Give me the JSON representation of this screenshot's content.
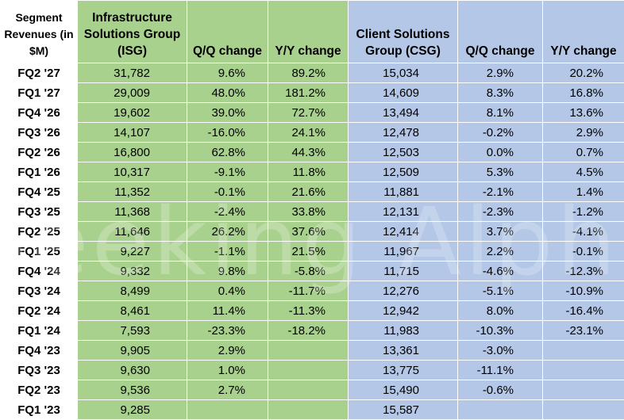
{
  "headers": {
    "segment": "Segment Revenues (in $M)",
    "isg": "Infrastructure Solutions Group (ISG)",
    "isg_qq": "Q/Q change",
    "isg_yy": "Y/Y change",
    "csg": "Client Solutions Group (CSG)",
    "csg_qq": "Q/Q change",
    "csg_yy": "Y/Y change"
  },
  "rows": [
    {
      "quarter": "FQ2 '27",
      "isg": "31,782",
      "isg_qq": "9.6%",
      "isg_yy": "89.2%",
      "csg": "15,034",
      "csg_qq": "2.9%",
      "csg_yy": "20.2%"
    },
    {
      "quarter": "FQ1 '27",
      "isg": "29,009",
      "isg_qq": "48.0%",
      "isg_yy": "181.2%",
      "csg": "14,609",
      "csg_qq": "8.3%",
      "csg_yy": "16.8%"
    },
    {
      "quarter": "FQ4 '26",
      "isg": "19,602",
      "isg_qq": "39.0%",
      "isg_yy": "72.7%",
      "csg": "13,494",
      "csg_qq": "8.1%",
      "csg_yy": "13.6%"
    },
    {
      "quarter": "FQ3 '26",
      "isg": "14,107",
      "isg_qq": "-16.0%",
      "isg_yy": "24.1%",
      "csg": "12,478",
      "csg_qq": "-0.2%",
      "csg_yy": "2.9%"
    },
    {
      "quarter": "FQ2 '26",
      "isg": "16,800",
      "isg_qq": "62.8%",
      "isg_yy": "44.3%",
      "csg": "12,503",
      "csg_qq": "0.0%",
      "csg_yy": "0.7%"
    },
    {
      "quarter": "FQ1 '26",
      "isg": "10,317",
      "isg_qq": "-9.1%",
      "isg_yy": "11.8%",
      "csg": "12,509",
      "csg_qq": "5.3%",
      "csg_yy": "4.5%"
    },
    {
      "quarter": "FQ4 '25",
      "isg": "11,352",
      "isg_qq": "-0.1%",
      "isg_yy": "21.6%",
      "csg": "11,881",
      "csg_qq": "-2.1%",
      "csg_yy": "1.4%"
    },
    {
      "quarter": "FQ3 '25",
      "isg": "11,368",
      "isg_qq": "-2.4%",
      "isg_yy": "33.8%",
      "csg": "12,131",
      "csg_qq": "-2.3%",
      "csg_yy": "-1.2%"
    },
    {
      "quarter": "FQ2 '25",
      "isg": "11,646",
      "isg_qq": "26.2%",
      "isg_yy": "37.6%",
      "csg": "12,414",
      "csg_qq": "3.7%",
      "csg_yy": "-4.1%"
    },
    {
      "quarter": "FQ1 '25",
      "isg": "9,227",
      "isg_qq": "-1.1%",
      "isg_yy": "21.5%",
      "csg": "11,967",
      "csg_qq": "2.2%",
      "csg_yy": "-0.1%"
    },
    {
      "quarter": "FQ4 '24",
      "isg": "9,332",
      "isg_qq": "9.8%",
      "isg_yy": "-5.8%",
      "csg": "11,715",
      "csg_qq": "-4.6%",
      "csg_yy": "-12.3%"
    },
    {
      "quarter": "FQ3 '24",
      "isg": "8,499",
      "isg_qq": "0.4%",
      "isg_yy": "-11.7%",
      "csg": "12,276",
      "csg_qq": "-5.1%",
      "csg_yy": "-10.9%"
    },
    {
      "quarter": "FQ2 '24",
      "isg": "8,461",
      "isg_qq": "11.4%",
      "isg_yy": "-11.3%",
      "csg": "12,942",
      "csg_qq": "8.0%",
      "csg_yy": "-16.4%"
    },
    {
      "quarter": "FQ1 '24",
      "isg": "7,593",
      "isg_qq": "-23.3%",
      "isg_yy": "-18.2%",
      "csg": "11,983",
      "csg_qq": "-10.3%",
      "csg_yy": "-23.1%"
    },
    {
      "quarter": "FQ4 '23",
      "isg": "9,905",
      "isg_qq": "2.9%",
      "isg_yy": "",
      "csg": "13,361",
      "csg_qq": "-3.0%",
      "csg_yy": ""
    },
    {
      "quarter": "FQ3 '23",
      "isg": "9,630",
      "isg_qq": "1.0%",
      "isg_yy": "",
      "csg": "13,775",
      "csg_qq": "-11.1%",
      "csg_yy": ""
    },
    {
      "quarter": "FQ2 '23",
      "isg": "9,536",
      "isg_qq": "2.7%",
      "isg_yy": "",
      "csg": "15,490",
      "csg_qq": "-0.6%",
      "csg_yy": ""
    },
    {
      "quarter": "FQ1 '23",
      "isg": "9,285",
      "isg_qq": "",
      "isg_yy": "",
      "csg": "15,587",
      "csg_qq": "",
      "csg_yy": ""
    }
  ],
  "watermark": "Seeking Alpha",
  "colors": {
    "isg_fill": "#a9d18e",
    "csg_fill": "#b4c7e7",
    "grid": "#ffffff"
  }
}
